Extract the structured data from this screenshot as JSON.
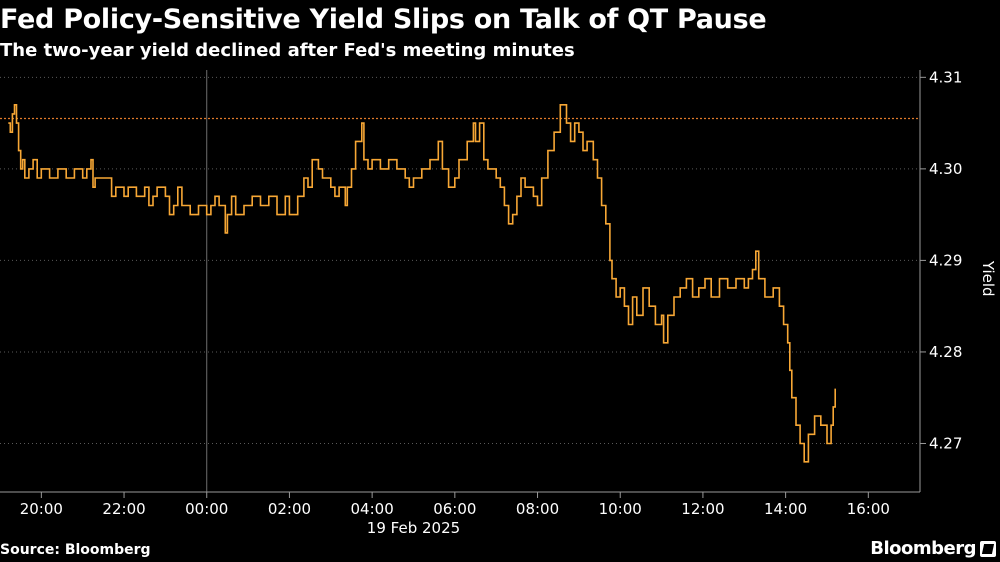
{
  "header": {
    "title": "Fed Policy-Sensitive Yield Slips on Talk of QT Pause",
    "subtitle": "The two-year yield declined after Fed's meeting minutes"
  },
  "footer": {
    "source": "Source: Bloomberg",
    "brand": "Bloomberg"
  },
  "colors": {
    "series": "#f7a735",
    "reference_line": "#e07a2a",
    "grid": "#5a5a5a",
    "axis": "#9a9a9a",
    "text": "#ffffff",
    "background": "#000000"
  },
  "icons": {
    "brand": "bloomberg-terminal-icon"
  },
  "chart_data": {
    "type": "line",
    "title": "Fed Policy-Sensitive Yield Slips on Talk of QT Pause",
    "subtitle": "The two-year yield declined after Fed's meeting minutes",
    "xlabel": "",
    "ylabel": "Yield",
    "date_label": "19 Feb 2025",
    "x_unit": "hours relative to 00:00 on 19 Feb 2025",
    "x_ticks": [
      {
        "value": -4,
        "label": "20:00"
      },
      {
        "value": -2,
        "label": "22:00"
      },
      {
        "value": 0,
        "label": "00:00"
      },
      {
        "value": 2,
        "label": "02:00"
      },
      {
        "value": 4,
        "label": "04:00"
      },
      {
        "value": 6,
        "label": "06:00"
      },
      {
        "value": 8,
        "label": "08:00"
      },
      {
        "value": 10,
        "label": "10:00"
      },
      {
        "value": 12,
        "label": "12:00"
      },
      {
        "value": 14,
        "label": "14:00"
      },
      {
        "value": 16,
        "label": "16:00"
      }
    ],
    "y_ticks": [
      {
        "value": 4.27,
        "label": "4.27"
      },
      {
        "value": 4.28,
        "label": "4.28"
      },
      {
        "value": 4.29,
        "label": "4.29"
      },
      {
        "value": 4.3,
        "label": "4.30"
      },
      {
        "value": 4.31,
        "label": "4.31"
      }
    ],
    "xlim": [
      -5,
      17.25
    ],
    "ylim": [
      4.2647,
      4.3108
    ],
    "vertical_marker": {
      "x": 0
    },
    "reference_line": {
      "y": 4.3055
    },
    "grid": "horizontal",
    "series": [
      {
        "points": [
          [
            -4.8,
            4.305
          ],
          [
            -4.75,
            4.304
          ],
          [
            -4.7,
            4.306
          ],
          [
            -4.65,
            4.307
          ],
          [
            -4.6,
            4.305
          ],
          [
            -4.55,
            4.302
          ],
          [
            -4.5,
            4.3
          ],
          [
            -4.45,
            4.301
          ],
          [
            -4.4,
            4.299
          ],
          [
            -4.3,
            4.3
          ],
          [
            -4.2,
            4.301
          ],
          [
            -4.1,
            4.299
          ],
          [
            -4.0,
            4.3
          ],
          [
            -3.8,
            4.299
          ],
          [
            -3.6,
            4.3
          ],
          [
            -3.4,
            4.299
          ],
          [
            -3.2,
            4.3
          ],
          [
            -3.0,
            4.299
          ],
          [
            -2.9,
            4.3
          ],
          [
            -2.8,
            4.301
          ],
          [
            -2.75,
            4.298
          ],
          [
            -2.7,
            4.299
          ],
          [
            -2.5,
            4.299
          ],
          [
            -2.3,
            4.297
          ],
          [
            -2.2,
            4.298
          ],
          [
            -2.0,
            4.297
          ],
          [
            -1.9,
            4.298
          ],
          [
            -1.7,
            4.297
          ],
          [
            -1.5,
            4.298
          ],
          [
            -1.4,
            4.296
          ],
          [
            -1.3,
            4.297
          ],
          [
            -1.2,
            4.298
          ],
          [
            -1.0,
            4.297
          ],
          [
            -0.9,
            4.295
          ],
          [
            -0.8,
            4.296
          ],
          [
            -0.7,
            4.298
          ],
          [
            -0.6,
            4.296
          ],
          [
            -0.4,
            4.295
          ],
          [
            -0.2,
            4.296
          ],
          [
            0.0,
            4.295
          ],
          [
            0.1,
            4.296
          ],
          [
            0.2,
            4.297
          ],
          [
            0.3,
            4.296
          ],
          [
            0.45,
            4.293
          ],
          [
            0.5,
            4.295
          ],
          [
            0.6,
            4.297
          ],
          [
            0.7,
            4.295
          ],
          [
            0.9,
            4.296
          ],
          [
            1.1,
            4.297
          ],
          [
            1.3,
            4.296
          ],
          [
            1.5,
            4.297
          ],
          [
            1.7,
            4.295
          ],
          [
            1.9,
            4.297
          ],
          [
            2.0,
            4.295
          ],
          [
            2.2,
            4.297
          ],
          [
            2.35,
            4.299
          ],
          [
            2.45,
            4.298
          ],
          [
            2.55,
            4.301
          ],
          [
            2.7,
            4.3
          ],
          [
            2.8,
            4.299
          ],
          [
            3.0,
            4.298
          ],
          [
            3.1,
            4.297
          ],
          [
            3.2,
            4.298
          ],
          [
            3.35,
            4.296
          ],
          [
            3.4,
            4.298
          ],
          [
            3.5,
            4.3
          ],
          [
            3.6,
            4.303
          ],
          [
            3.75,
            4.305
          ],
          [
            3.8,
            4.301
          ],
          [
            3.9,
            4.3
          ],
          [
            4.0,
            4.301
          ],
          [
            4.2,
            4.3
          ],
          [
            4.4,
            4.301
          ],
          [
            4.6,
            4.3
          ],
          [
            4.8,
            4.299
          ],
          [
            4.9,
            4.298
          ],
          [
            5.0,
            4.299
          ],
          [
            5.2,
            4.3
          ],
          [
            5.4,
            4.301
          ],
          [
            5.6,
            4.303
          ],
          [
            5.7,
            4.3
          ],
          [
            5.85,
            4.298
          ],
          [
            6.0,
            4.299
          ],
          [
            6.1,
            4.301
          ],
          [
            6.3,
            4.303
          ],
          [
            6.45,
            4.305
          ],
          [
            6.5,
            4.303
          ],
          [
            6.6,
            4.305
          ],
          [
            6.7,
            4.301
          ],
          [
            6.8,
            4.3
          ],
          [
            7.0,
            4.299
          ],
          [
            7.1,
            4.298
          ],
          [
            7.2,
            4.296
          ],
          [
            7.3,
            4.294
          ],
          [
            7.4,
            4.295
          ],
          [
            7.5,
            4.297
          ],
          [
            7.6,
            4.299
          ],
          [
            7.7,
            4.298
          ],
          [
            7.9,
            4.297
          ],
          [
            8.0,
            4.296
          ],
          [
            8.1,
            4.299
          ],
          [
            8.25,
            4.302
          ],
          [
            8.4,
            4.304
          ],
          [
            8.55,
            4.307
          ],
          [
            8.7,
            4.305
          ],
          [
            8.8,
            4.303
          ],
          [
            8.9,
            4.305
          ],
          [
            9.0,
            4.304
          ],
          [
            9.1,
            4.302
          ],
          [
            9.2,
            4.303
          ],
          [
            9.35,
            4.301
          ],
          [
            9.45,
            4.299
          ],
          [
            9.55,
            4.296
          ],
          [
            9.65,
            4.294
          ],
          [
            9.75,
            4.29
          ],
          [
            9.8,
            4.288
          ],
          [
            9.9,
            4.286
          ],
          [
            10.0,
            4.287
          ],
          [
            10.1,
            4.285
          ],
          [
            10.2,
            4.283
          ],
          [
            10.3,
            4.286
          ],
          [
            10.4,
            4.284
          ],
          [
            10.55,
            4.287
          ],
          [
            10.7,
            4.285
          ],
          [
            10.85,
            4.283
          ],
          [
            11.0,
            4.284
          ],
          [
            11.05,
            4.281
          ],
          [
            11.15,
            4.284
          ],
          [
            11.3,
            4.286
          ],
          [
            11.45,
            4.287
          ],
          [
            11.6,
            4.288
          ],
          [
            11.75,
            4.286
          ],
          [
            11.9,
            4.287
          ],
          [
            12.05,
            4.288
          ],
          [
            12.2,
            4.286
          ],
          [
            12.4,
            4.288
          ],
          [
            12.6,
            4.287
          ],
          [
            12.8,
            4.288
          ],
          [
            13.0,
            4.287
          ],
          [
            13.1,
            4.288
          ],
          [
            13.2,
            4.289
          ],
          [
            13.28,
            4.291
          ],
          [
            13.35,
            4.288
          ],
          [
            13.5,
            4.286
          ],
          [
            13.7,
            4.287
          ],
          [
            13.85,
            4.285
          ],
          [
            13.95,
            4.283
          ],
          [
            14.05,
            4.281
          ],
          [
            14.1,
            4.278
          ],
          [
            14.15,
            4.275
          ],
          [
            14.25,
            4.272
          ],
          [
            14.35,
            4.27
          ],
          [
            14.45,
            4.268
          ],
          [
            14.55,
            4.271
          ],
          [
            14.7,
            4.273
          ],
          [
            14.85,
            4.272
          ],
          [
            15.0,
            4.27
          ],
          [
            15.1,
            4.272
          ],
          [
            15.15,
            4.274
          ],
          [
            15.2,
            4.276
          ]
        ]
      }
    ]
  }
}
